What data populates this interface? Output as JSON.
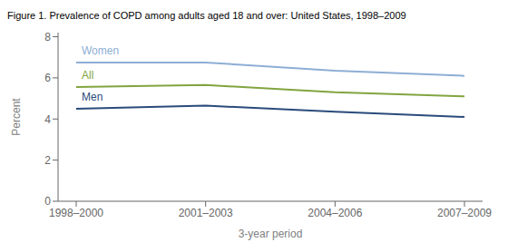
{
  "chart_data": {
    "type": "line",
    "title": "Figure 1. Prevalence of COPD among adults aged 18 and over: United States, 1998–2009",
    "xlabel": "3-year period",
    "ylabel": "Percent",
    "categories": [
      "1998–2000",
      "2001–2003",
      "2004–2006",
      "2007–2009"
    ],
    "series": [
      {
        "name": "Women",
        "color": "#8daed4",
        "values": [
          6.75,
          6.75,
          6.35,
          6.1
        ]
      },
      {
        "name": "All",
        "color": "#82a440",
        "values": [
          5.55,
          5.65,
          5.3,
          5.1
        ]
      },
      {
        "name": "Men",
        "color": "#2a4b7c",
        "values": [
          4.5,
          4.65,
          4.35,
          4.1
        ]
      }
    ],
    "ylim": [
      0,
      8.2
    ],
    "yticks": [
      0,
      2,
      4,
      6,
      8
    ],
    "grid": false
  }
}
